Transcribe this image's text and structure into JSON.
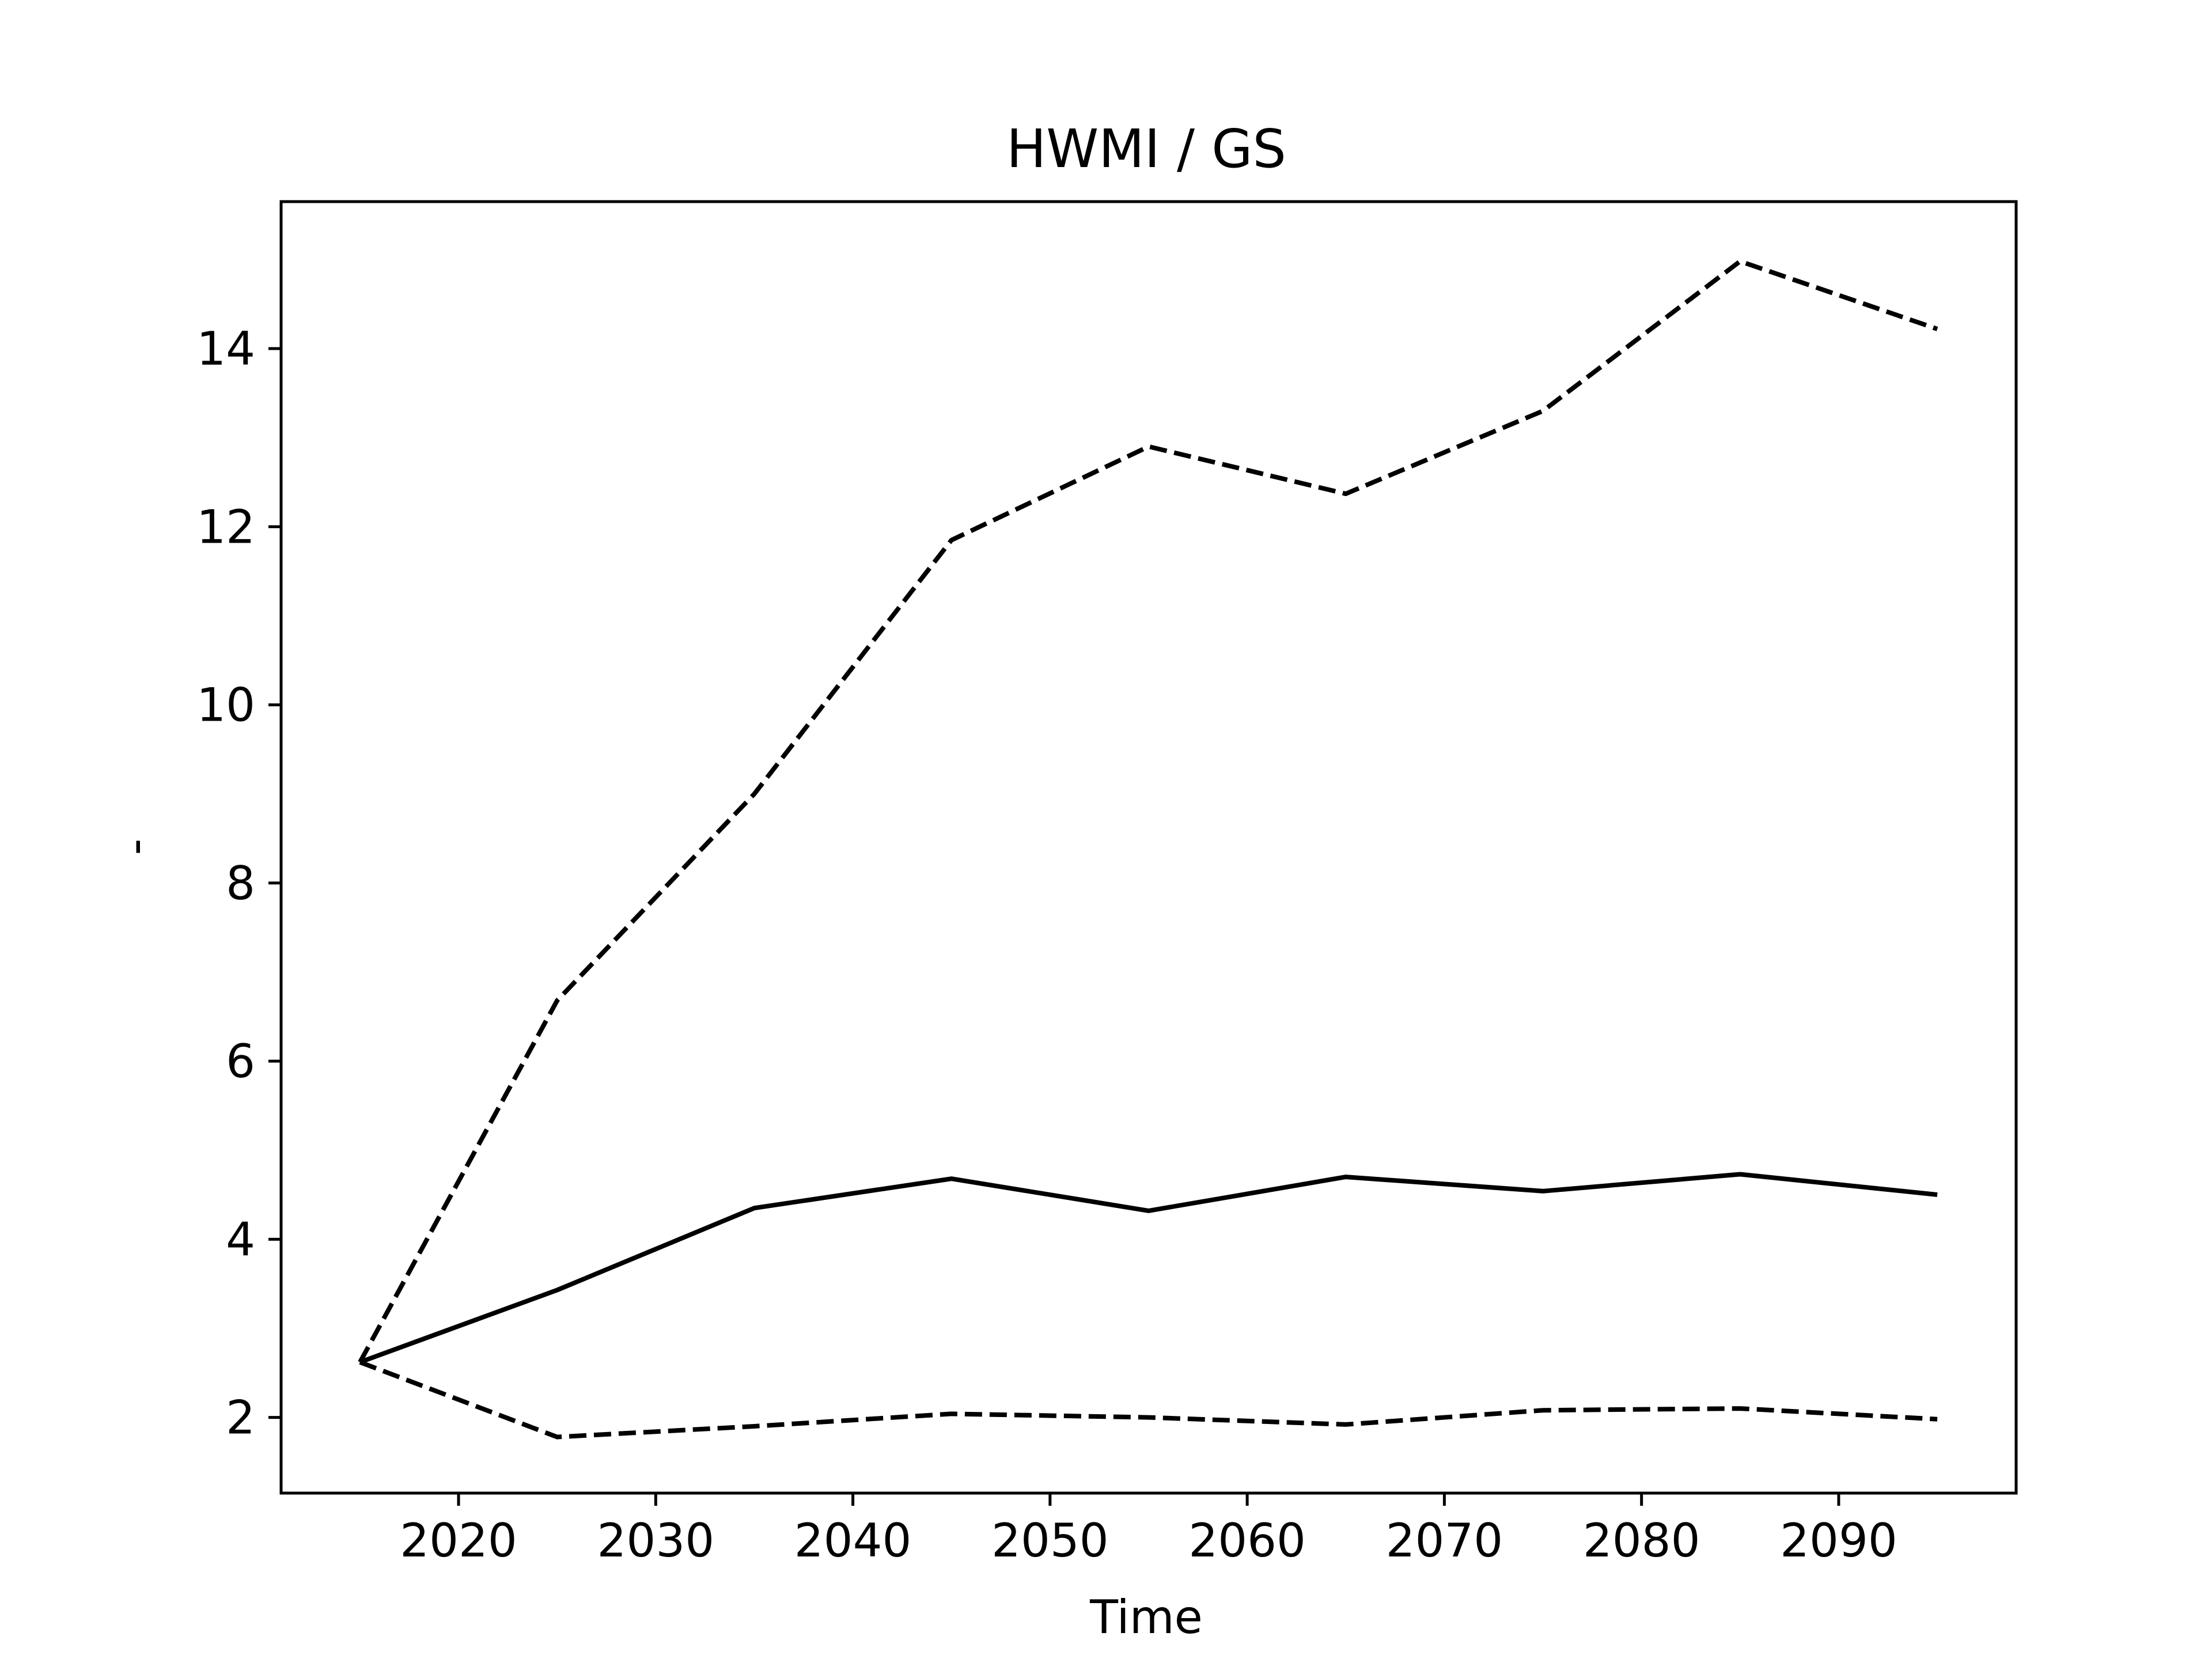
{
  "chart_data": {
    "type": "line",
    "title": "HWMI / GS",
    "xlabel": "Time",
    "ylabel": "-",
    "xlim": [
      2011,
      2099
    ],
    "ylim": [
      1.15,
      15.65
    ],
    "xticks": [
      2020,
      2030,
      2040,
      2050,
      2060,
      2070,
      2080,
      2090
    ],
    "yticks": [
      2,
      4,
      6,
      8,
      10,
      12,
      14
    ],
    "grid": false,
    "x": [
      2015,
      2025,
      2035,
      2045,
      2055,
      2065,
      2075,
      2085,
      2095
    ],
    "series": [
      {
        "style": "dashed",
        "color": "#000000",
        "values": [
          2.62,
          6.68,
          9.0,
          11.85,
          12.9,
          12.37,
          13.3,
          14.98,
          14.22
        ]
      },
      {
        "style": "solid",
        "color": "#000000",
        "values": [
          2.62,
          3.43,
          4.35,
          4.68,
          4.32,
          4.7,
          4.54,
          4.73,
          4.5
        ]
      },
      {
        "style": "dashed",
        "color": "#000000",
        "values": [
          2.62,
          1.78,
          1.9,
          2.04,
          2.0,
          1.92,
          2.08,
          2.1,
          1.98
        ]
      }
    ]
  }
}
